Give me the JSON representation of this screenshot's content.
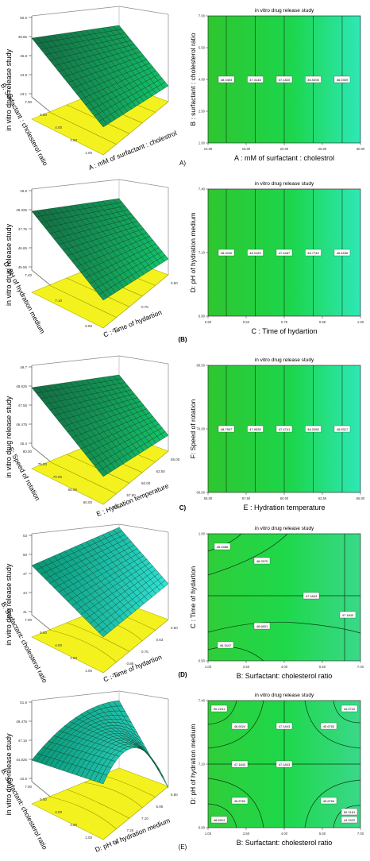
{
  "chart_data": [
    {
      "panel": "A",
      "surface": {
        "type": "surface3d",
        "zlabel": "in vitro drug release study",
        "xlabel": "A : mM of surfactant : cholestrol",
        "ylabel": "B: Surfactant : cholesterol ratio",
        "zticks": [
          "50.5",
          "48.65",
          "46.8",
          "44.9",
          "43.1"
        ],
        "yticks": [
          "7.00",
          "5.50",
          "4.00",
          "2.50",
          "1.00"
        ],
        "xticks": [],
        "shape": "plane"
      },
      "contour": {
        "type": "contour",
        "title": "in vitro drug release study",
        "xlabel": "A : mM of surfactant : cholestrol",
        "ylabel": "B : surfactant : cholesterol ratio",
        "xticks": [
          "10.00",
          "15.00",
          "20.00",
          "25.00",
          "30.00"
        ],
        "yticks": [
          "1.00",
          "2.50",
          "4.00",
          "5.50",
          "7.00"
        ],
        "line_labels": [
          "48.3403",
          "47.3148",
          "47.1820",
          "46.9206",
          "46.0309"
        ]
      },
      "tag": "A)"
    },
    {
      "panel": "B",
      "surface": {
        "type": "surface3d",
        "zlabel": "in vitro drug release study",
        "xlabel": "C : Time of hydartion",
        "ylabel": "D: pH of hydration medium",
        "zticks": [
          "49.8",
          "48.325",
          "47.75",
          "46.65",
          "45.55"
        ],
        "yticks": [
          "7.40",
          "7.10",
          "6.80"
        ],
        "xticks": [
          "1.00",
          "0.75",
          "0.50"
        ],
        "shape": "plane"
      },
      "contour": {
        "type": "contour",
        "title": "in vitro drug release study",
        "xlabel": "C : Time of hydartion",
        "ylabel": "D: pH of hydration medium",
        "xticks": [
          "0.50",
          "0.63",
          "0.75",
          "0.88",
          "1.00"
        ],
        "yticks": [
          "6.80",
          "7.10",
          "7.40"
        ],
        "line_labels": [
          "48.0040",
          "48.0183",
          "47.4487",
          "46.7749",
          "46.4636"
        ]
      },
      "tag": "(B)"
    },
    {
      "panel": "C",
      "surface": {
        "type": "surface3d",
        "zlabel": "in vitro drug release study",
        "xlabel": "E : Hydration temperature",
        "ylabel": "F: Speed of rotation",
        "zticks": [
          "49.7",
          "48.625",
          "47.55",
          "46.475",
          "45.4"
        ],
        "yticks": [
          "80.00",
          "75.00",
          "70.00",
          "65.00",
          "60.00"
        ],
        "xticks": [
          "55.00",
          "57.50",
          "60.00",
          "62.50",
          "65.00"
        ],
        "shape": "plane"
      },
      "contour": {
        "type": "contour",
        "title": "in vitro drug release study",
        "xlabel": "E : Hydration temperature",
        "ylabel": "F: Speed of rotation",
        "xticks": [
          "55.00",
          "57.50",
          "60.00",
          "62.50",
          "65.00"
        ],
        "yticks": [
          "60.00",
          "70.00",
          "80.00"
        ],
        "line_labels": [
          "48.7907",
          "47.9539",
          "47.4741",
          "46.2055",
          "45.9317"
        ]
      },
      "tag": "C)"
    },
    {
      "panel": "D",
      "surface": {
        "type": "surface3d",
        "zlabel": "in vitro drug release study",
        "xlabel": "C : Time of hydartion",
        "ylabel": "B: Surfactant: cholesterol ratio",
        "zticks": [
          "53",
          "50",
          "47",
          "44",
          "41"
        ],
        "yticks": [
          "7.00",
          "5.50",
          "4.00",
          "2.50",
          "1.00"
        ],
        "xticks": [
          "1.00",
          "0.88",
          "0.75",
          "0.63",
          "0.50"
        ],
        "shape": "saddle"
      },
      "contour": {
        "type": "contour",
        "title": "in vitro drug release study",
        "xlabel": "B: Surfactant: cholesterol ratio",
        "ylabel": "C : Time of hydartion",
        "xticks": [
          "1.00",
          "2.50",
          "4.00",
          "5.50",
          "7.00"
        ],
        "yticks": [
          "0.50",
          "1.00"
        ],
        "line_labels": [
          "45.4986",
          "48.2575",
          "47.1843",
          "48.6801",
          "46.3447",
          "47.1843"
        ]
      },
      "tag": "(D)"
    },
    {
      "panel": "E",
      "surface": {
        "type": "surface3d",
        "zlabel": "in vitro drug release study",
        "xlabel": "D: pH of hydration medium",
        "ylabel": "B: Surfactant: cholesterol ratio",
        "zticks": [
          "51.8",
          "49.475",
          "47.15",
          "44.825",
          "42.5"
        ],
        "yticks": [
          "7.00",
          "5.50",
          "4.00",
          "2.50",
          "1.00"
        ],
        "xticks": [
          "7.40",
          "7.25",
          "7.10",
          "6.95",
          "6.80"
        ],
        "shape": "ridge"
      },
      "contour": {
        "type": "contour",
        "title": "in vitro drug release study",
        "xlabel": "B: Surfactant: cholesterol ratio",
        "ylabel": "D: pH of hydration medium",
        "xticks": [
          "1.00",
          "2.50",
          "4.00",
          "5.50",
          "7.00"
        ],
        "yticks": [
          "6.80",
          "7.10",
          "7.40"
        ],
        "line_labels": [
          "50.2161",
          "48.6924",
          "47.1843",
          "45.6763",
          "44.0722",
          "47.1843",
          "47.1843",
          "45.6763",
          "45.6763",
          "48.6924",
          "44.1522",
          "50.2161"
        ]
      },
      "tag": "(E)"
    }
  ]
}
